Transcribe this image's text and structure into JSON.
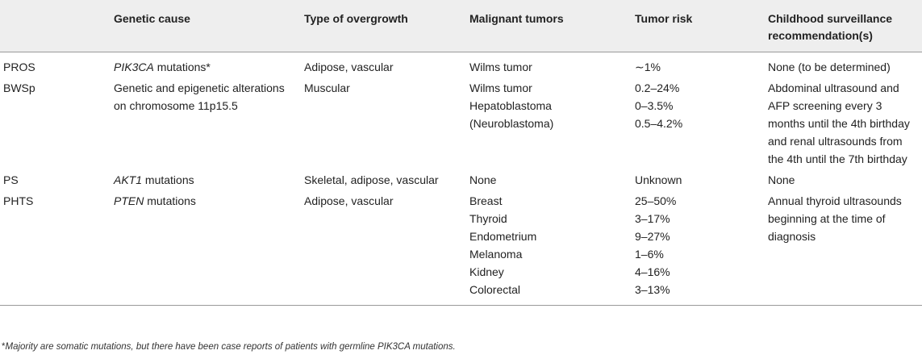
{
  "columns": [
    "",
    "Genetic cause",
    "Type of overgrowth",
    "Malignant tumors",
    "Tumor risk",
    "Childhood surveillance recommendation(s)"
  ],
  "rows": [
    {
      "syndrome": "PROS",
      "cause_gene": "PIK3CA",
      "cause_rest": " mutations*",
      "overgrowth": "Adipose, vascular",
      "tumors": [
        "Wilms tumor"
      ],
      "risks": [
        "∼1%"
      ],
      "surveillance": "None (to be determined)"
    },
    {
      "syndrome": "BWSp",
      "cause_gene": "",
      "cause_rest": "Genetic and epigenetic alterations on chromosome 11p15.5",
      "overgrowth": "Muscular",
      "tumors": [
        "Wilms tumor",
        "Hepatoblastoma",
        "(Neuroblastoma)"
      ],
      "risks": [
        "0.2–24%",
        "0–3.5%",
        "0.5–4.2%"
      ],
      "surveillance": "Abdominal ultrasound and AFP screening every 3 months until the 4th birthday and renal ultrasounds from the 4th until the 7th birthday"
    },
    {
      "syndrome": "PS",
      "cause_gene": "AKT1",
      "cause_rest": " mutations",
      "overgrowth": "Skeletal, adipose, vascular",
      "tumors": [
        "None"
      ],
      "risks": [
        "Unknown"
      ],
      "surveillance": "None"
    },
    {
      "syndrome": "PHTS",
      "cause_gene": "PTEN",
      "cause_rest": " mutations",
      "overgrowth": "Adipose, vascular",
      "tumors": [
        "Breast",
        "Thyroid",
        "Endometrium",
        "Melanoma",
        "Kidney",
        "Colorectal"
      ],
      "risks": [
        "25–50%",
        "3–17%",
        "9–27%",
        "1–6%",
        "4–16%",
        "3–13%"
      ],
      "surveillance": "Annual thyroid ultrasounds beginning at the time of diagnosis"
    }
  ],
  "footnote": {
    "mark": "*",
    "text": "Majority are somatic mutations, but there have been case reports of patients with germline PIK3CA mutations."
  }
}
